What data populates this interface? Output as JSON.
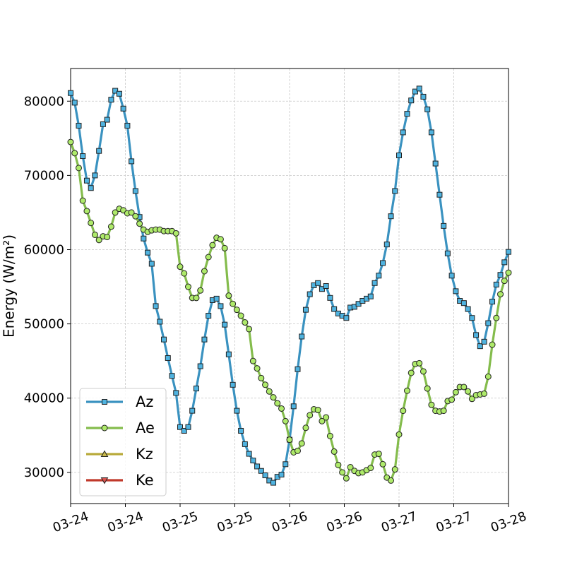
{
  "chart_data": {
    "type": "line",
    "ylabel": "Energy (W/m²)",
    "xlim": [
      0,
      108
    ],
    "xticks": [
      {
        "value": 0,
        "label": "03-24"
      },
      {
        "value": 13.5,
        "label": "03-24"
      },
      {
        "value": 27,
        "label": "03-25"
      },
      {
        "value": 40.5,
        "label": "03-25"
      },
      {
        "value": 54,
        "label": "03-26"
      },
      {
        "value": 67.5,
        "label": "03-26"
      },
      {
        "value": 81,
        "label": "03-27"
      },
      {
        "value": 94.5,
        "label": "03-27"
      },
      {
        "value": 108,
        "label": "03-28"
      }
    ],
    "ylim": [
      25800,
      84400
    ],
    "yticks": [
      30000,
      40000,
      50000,
      60000,
      70000,
      80000
    ],
    "grid": true,
    "legend": "lower left",
    "series": [
      {
        "name": "Az",
        "color": "#3a92c0",
        "marker_color": "#4fb3e0",
        "marker": "square",
        "values": [
          81100,
          79800,
          76700,
          72600,
          69300,
          68300,
          70000,
          73300,
          76900,
          77500,
          80200,
          81400,
          81000,
          79000,
          76700,
          71900,
          67900,
          64400,
          61500,
          59600,
          58100,
          52400,
          50300,
          47900,
          45400,
          43000,
          40700,
          36100,
          35600,
          36100,
          38300,
          41300,
          44300,
          47900,
          51100,
          53200,
          53400,
          52400,
          49900,
          45900,
          41800,
          38300,
          35600,
          33800,
          32500,
          31600,
          30800,
          30200,
          29600,
          28900,
          28600,
          29400,
          29700,
          31100,
          34400,
          38900,
          43900,
          48300,
          51900,
          54000,
          55200,
          55500,
          54700,
          55100,
          53500,
          52000,
          51400,
          51100,
          50800,
          52200,
          52300,
          52700,
          53100,
          53400,
          53700,
          55500,
          56500,
          58200,
          60700,
          64500,
          67900,
          72700,
          75800,
          78300,
          80100,
          81300,
          81700,
          80600,
          78900,
          75800,
          71600,
          67400,
          63200,
          59500,
          56500,
          54400,
          53100,
          52800,
          52000,
          50800,
          48500,
          47000,
          47600,
          50100,
          53000,
          55300,
          56600,
          58300,
          59700
        ]
      },
      {
        "name": "Ae",
        "color": "#84bc4c",
        "marker_color": "#aeea6a",
        "marker": "circle",
        "values": [
          74500,
          73000,
          71000,
          66600,
          65200,
          63600,
          62000,
          61300,
          61800,
          61700,
          63100,
          65000,
          65500,
          65300,
          64900,
          65000,
          64500,
          63500,
          62700,
          62400,
          62600,
          62700,
          62700,
          62500,
          62500,
          62500,
          62200,
          57700,
          56800,
          55000,
          53500,
          53500,
          54500,
          57100,
          59000,
          60600,
          61600,
          61400,
          60200,
          53800,
          52700,
          51900,
          51100,
          50200,
          49300,
          45000,
          44000,
          42700,
          41800,
          40900,
          40100,
          39300,
          38600,
          36900,
          34400,
          32700,
          32900,
          33900,
          36000,
          37700,
          38500,
          38400,
          36900,
          37400,
          34900,
          32800,
          31000,
          30000,
          29200,
          30700,
          30200,
          29900,
          30000,
          30300,
          30600,
          32400,
          32500,
          31100,
          29300,
          28900,
          30400,
          35100,
          38300,
          41000,
          43400,
          44600,
          44700,
          43600,
          41300,
          39100,
          38300,
          38200,
          38300,
          39600,
          39800,
          40800,
          41500,
          41500,
          40900,
          39900,
          40400,
          40500,
          40600,
          42900,
          47200,
          50800,
          54000,
          55800,
          56900
        ]
      },
      {
        "name": "Kz",
        "color": "#b8aa3a",
        "marker_color": "#c8b84a",
        "marker": "triangle-up",
        "values": [
          null,
          null,
          null,
          null,
          null,
          null,
          null,
          null,
          null,
          null,
          null,
          null,
          null,
          null,
          null,
          null,
          null,
          null,
          null,
          null,
          null,
          null,
          null,
          null,
          null,
          null,
          null,
          null,
          null,
          null,
          null,
          null,
          null,
          null,
          null,
          null,
          null,
          null,
          null,
          null,
          null,
          null,
          null,
          null,
          null,
          null,
          null,
          null,
          null,
          null,
          null,
          null,
          null,
          null,
          null,
          null,
          null,
          null,
          null,
          null,
          null,
          null,
          null,
          null,
          null,
          null,
          null,
          null,
          null,
          null,
          null,
          null,
          null,
          null,
          null,
          null,
          null,
          null,
          null,
          null,
          null,
          null,
          null,
          null,
          null,
          null,
          null,
          null,
          null,
          null,
          null,
          null,
          null,
          null,
          null,
          null,
          null,
          null,
          null,
          null,
          null,
          null,
          null,
          null,
          null,
          null,
          null,
          null,
          null
        ]
      },
      {
        "name": "Ke",
        "color": "#c0392b",
        "marker_color": "#d9534f",
        "marker": "triangle-down",
        "values": [
          null,
          null,
          null,
          null,
          null,
          null,
          null,
          null,
          null,
          null,
          null,
          null,
          null,
          null,
          null,
          null,
          null,
          null,
          null,
          null,
          null,
          null,
          null,
          null,
          null,
          null,
          null,
          null,
          null,
          null,
          null,
          null,
          null,
          null,
          null,
          null,
          null,
          null,
          null,
          null,
          null,
          null,
          null,
          null,
          null,
          null,
          null,
          null,
          null,
          null,
          null,
          null,
          null,
          null,
          null,
          null,
          null,
          null,
          null,
          null,
          null,
          null,
          null,
          null,
          null,
          null,
          null,
          null,
          null,
          null,
          null,
          null,
          null,
          null,
          null,
          null,
          null,
          null,
          null,
          null,
          null,
          null,
          null,
          null,
          null,
          null,
          null,
          null,
          null,
          null,
          null,
          null,
          null,
          null,
          null,
          null,
          null,
          null,
          null,
          null,
          null,
          null,
          null,
          null,
          null,
          null,
          null,
          null,
          null
        ]
      }
    ]
  }
}
